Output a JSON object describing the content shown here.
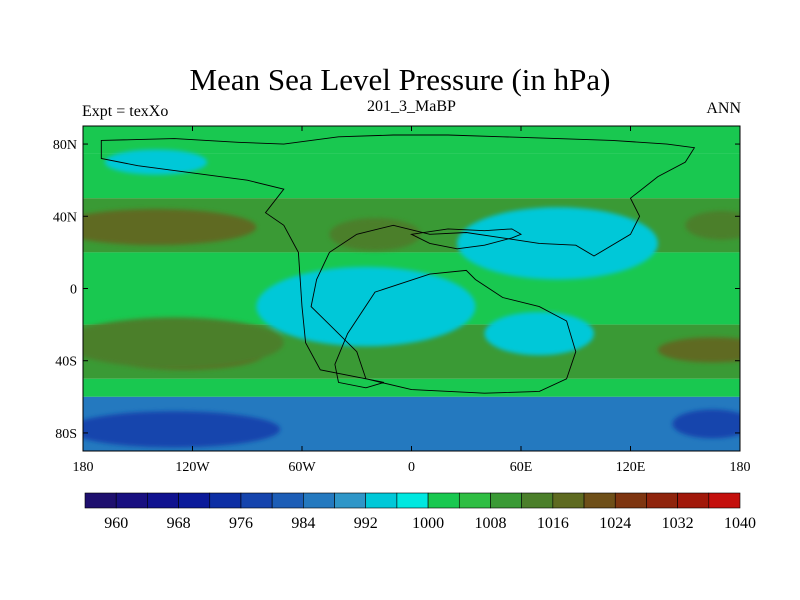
{
  "chart_data": {
    "type": "heatmap",
    "title": "Mean Sea Level Pressure (in hPa)",
    "left_string": "Expt = texXo",
    "center_string": "201_3_MaBP",
    "right_string": "ANN",
    "x_range": [
      -180,
      180
    ],
    "y_range": [
      -90,
      90
    ],
    "x_ticks": [
      {
        "value": -180,
        "label": "180"
      },
      {
        "value": -120,
        "label": "120W"
      },
      {
        "value": -60,
        "label": "60W"
      },
      {
        "value": 0,
        "label": "0"
      },
      {
        "value": 60,
        "label": "60E"
      },
      {
        "value": 120,
        "label": "120E"
      },
      {
        "value": 180,
        "label": "180"
      }
    ],
    "y_ticks": [
      {
        "value": 80,
        "label": "80N"
      },
      {
        "value": 40,
        "label": "40N"
      },
      {
        "value": 0,
        "label": "0"
      },
      {
        "value": -40,
        "label": "40S"
      },
      {
        "value": -80,
        "label": "80S"
      }
    ],
    "zonal_bands": [
      {
        "lat_top": 90,
        "lat_bottom": 75,
        "value": 1004
      },
      {
        "lat_top": 75,
        "lat_bottom": 50,
        "value": 1004
      },
      {
        "lat_top": 50,
        "lat_bottom": 20,
        "value": 1012
      },
      {
        "lat_top": 20,
        "lat_bottom": -20,
        "value": 1004
      },
      {
        "lat_top": -20,
        "lat_bottom": -50,
        "value": 1012
      },
      {
        "lat_top": -50,
        "lat_bottom": -60,
        "value": 1004
      },
      {
        "lat_top": -60,
        "lat_bottom": -90,
        "value": 990
      }
    ],
    "features": [
      {
        "name": "north-pacific-low",
        "lon": -140,
        "lat": 70,
        "lon_radius": 28,
        "lat_radius": 7,
        "value": 996
      },
      {
        "name": "north-pacific-high",
        "lon": -140,
        "lat": 34,
        "lon_radius": 55,
        "lat_radius": 10,
        "value": 1020
      },
      {
        "name": "north-atlantic-high",
        "lon": -20,
        "lat": 30,
        "lon_radius": 25,
        "lat_radius": 9,
        "value": 1016
      },
      {
        "name": "south-pacific-high",
        "lon": -125,
        "lat": -36,
        "lon_radius": 45,
        "lat_radius": 9,
        "value": 1020
      },
      {
        "name": "south-pacific-ridge",
        "lon": -130,
        "lat": -30,
        "lon_radius": 60,
        "lat_radius": 14,
        "value": 1016
      },
      {
        "name": "south-indian-high",
        "lon": 165,
        "lat": -34,
        "lon_radius": 30,
        "lat_radius": 7,
        "value": 1020
      },
      {
        "name": "antarctic-low-west",
        "lon": -130,
        "lat": -78,
        "lon_radius": 58,
        "lat_radius": 10,
        "value": 980
      },
      {
        "name": "antarctic-low-east",
        "lon": 165,
        "lat": -75,
        "lon_radius": 22,
        "lat_radius": 8,
        "value": 980
      },
      {
        "name": "asian-low",
        "lon": 80,
        "lat": 25,
        "lon_radius": 55,
        "lat_radius": 20,
        "value": 996
      },
      {
        "name": "gondwana-low",
        "lon": -25,
        "lat": -10,
        "lon_radius": 60,
        "lat_radius": 22,
        "value": 996
      },
      {
        "name": "southern-heat-low",
        "lon": 70,
        "lat": -25,
        "lon_radius": 30,
        "lat_radius": 12,
        "value": 996
      },
      {
        "name": "east-asian-high",
        "lon": 170,
        "lat": 35,
        "lon_radius": 20,
        "lat_radius": 8,
        "value": 1016
      }
    ],
    "colorbar": {
      "levels": [
        960,
        964,
        968,
        972,
        976,
        980,
        984,
        988,
        992,
        996,
        1000,
        1004,
        1008,
        1012,
        1016,
        1020,
        1024,
        1028,
        1032,
        1036,
        1040
      ],
      "labels": [
        "960",
        "968",
        "976",
        "984",
        "992",
        "1000",
        "1008",
        "1016",
        "1024",
        "1032",
        "1040"
      ],
      "colors": [
        "#1e0f6e",
        "#180f80",
        "#10128f",
        "#0b1a9a",
        "#0d2ea4",
        "#1544ad",
        "#1c5db6",
        "#2479bf",
        "#2e96c8",
        "#00c8d8",
        "#00e8e0",
        "#19c850",
        "#2fbe43",
        "#3a9a35",
        "#4b7f2a",
        "#5e6a20",
        "#6e4f18",
        "#7e3510",
        "#8f240c",
        "#a1180a",
        "#c40f0c"
      ]
    },
    "continent_outline": [
      [
        -170,
        82
      ],
      [
        -130,
        83
      ],
      [
        -95,
        81
      ],
      [
        -70,
        80
      ],
      [
        -40,
        84
      ],
      [
        -10,
        85
      ],
      [
        20,
        85
      ],
      [
        50,
        84
      ],
      [
        80,
        83
      ],
      [
        110,
        82
      ],
      [
        140,
        80
      ],
      [
        155,
        78
      ],
      [
        150,
        70
      ],
      [
        135,
        62
      ],
      [
        120,
        50
      ],
      [
        125,
        40
      ],
      [
        120,
        30
      ],
      [
        100,
        18
      ],
      [
        90,
        24
      ],
      [
        70,
        25
      ],
      [
        50,
        28
      ],
      [
        30,
        31
      ],
      [
        10,
        30
      ],
      [
        -10,
        35
      ],
      [
        -30,
        30
      ],
      [
        -45,
        20
      ],
      [
        -52,
        5
      ],
      [
        -55,
        -10
      ],
      [
        -45,
        -20
      ],
      [
        -30,
        -35
      ],
      [
        -25,
        -50
      ],
      [
        0,
        -56
      ],
      [
        40,
        -58
      ],
      [
        70,
        -57
      ],
      [
        85,
        -50
      ],
      [
        90,
        -35
      ],
      [
        85,
        -18
      ],
      [
        70,
        -10
      ],
      [
        50,
        -5
      ],
      [
        35,
        5
      ],
      [
        30,
        10
      ],
      [
        10,
        8
      ],
      [
        -20,
        -2
      ],
      [
        -35,
        -25
      ],
      [
        -42,
        -42
      ],
      [
        -40,
        -52
      ],
      [
        -25,
        -55
      ],
      [
        -15,
        -52
      ],
      [
        -50,
        -45
      ],
      [
        -58,
        -30
      ],
      [
        -60,
        -10
      ],
      [
        -62,
        20
      ],
      [
        -70,
        35
      ],
      [
        -80,
        42
      ],
      [
        -70,
        55
      ],
      [
        -90,
        60
      ],
      [
        -120,
        64
      ],
      [
        -150,
        68
      ],
      [
        -170,
        72
      ]
    ],
    "inland_outline": [
      [
        0,
        30
      ],
      [
        10,
        25
      ],
      [
        25,
        22
      ],
      [
        40,
        24
      ],
      [
        55,
        28
      ],
      [
        60,
        30
      ],
      [
        55,
        33
      ],
      [
        40,
        32
      ],
      [
        20,
        33
      ],
      [
        0,
        30
      ]
    ]
  }
}
